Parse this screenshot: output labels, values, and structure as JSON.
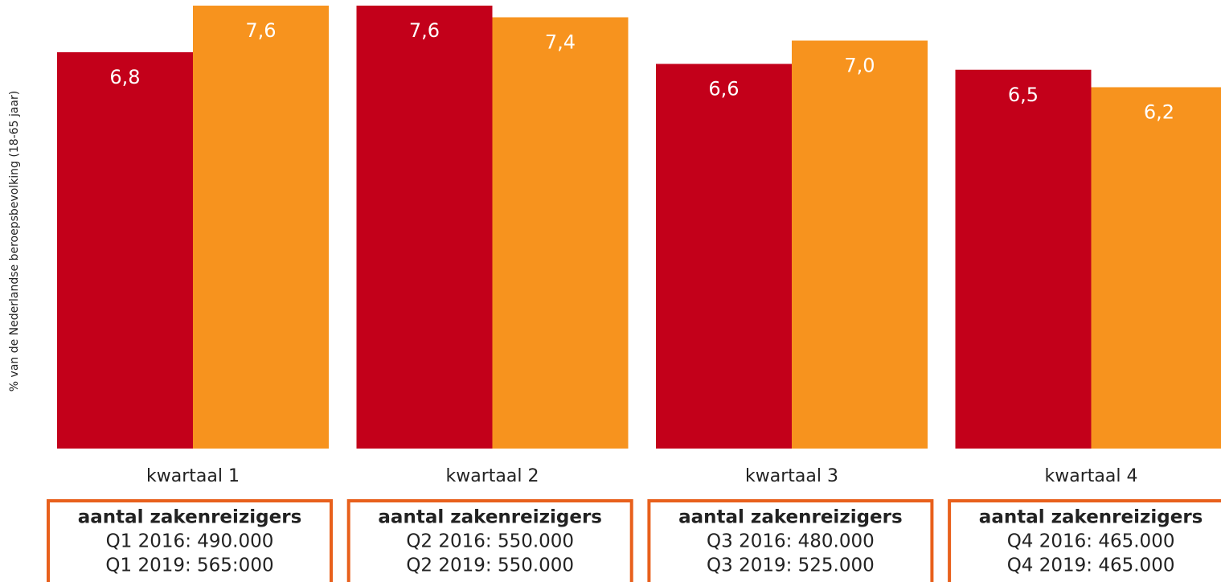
{
  "chart_data": {
    "type": "bar",
    "y_label": "% van de Nederlandse beroepsbevolking (18-65 jaar)",
    "categories": [
      "kwartaal 1",
      "kwartaal 2",
      "kwartaal 3",
      "kwartaal 4"
    ],
    "series": [
      {
        "color": "#c3001a",
        "values": [
          6.8,
          7.6,
          6.6,
          6.5
        ],
        "value_labels": [
          "6,8",
          "7,6",
          "6,6",
          "6,5"
        ]
      },
      {
        "color": "#f7931e",
        "values": [
          7.6,
          7.4,
          7.0,
          6.2
        ],
        "value_labels": [
          "7,6",
          "7,4",
          "7,0",
          "6,2"
        ]
      }
    ],
    "ylim": [
      0,
      7.6
    ],
    "box_color": "#e8601c",
    "annotations": [
      {
        "title": "aantal zakenreizigers",
        "lines": [
          "Q1 2016: 490.000",
          "Q1 2019: 565:000"
        ]
      },
      {
        "title": "aantal zakenreizigers",
        "lines": [
          "Q2 2016: 550.000",
          "Q2 2019: 550.000"
        ]
      },
      {
        "title": "aantal zakenreizigers",
        "lines": [
          "Q3 2016: 480.000",
          "Q3 2019: 525.000"
        ]
      },
      {
        "title": "aantal zakenreizigers",
        "lines": [
          "Q4 2016: 465.000",
          "Q4 2019: 465.000"
        ]
      }
    ]
  }
}
